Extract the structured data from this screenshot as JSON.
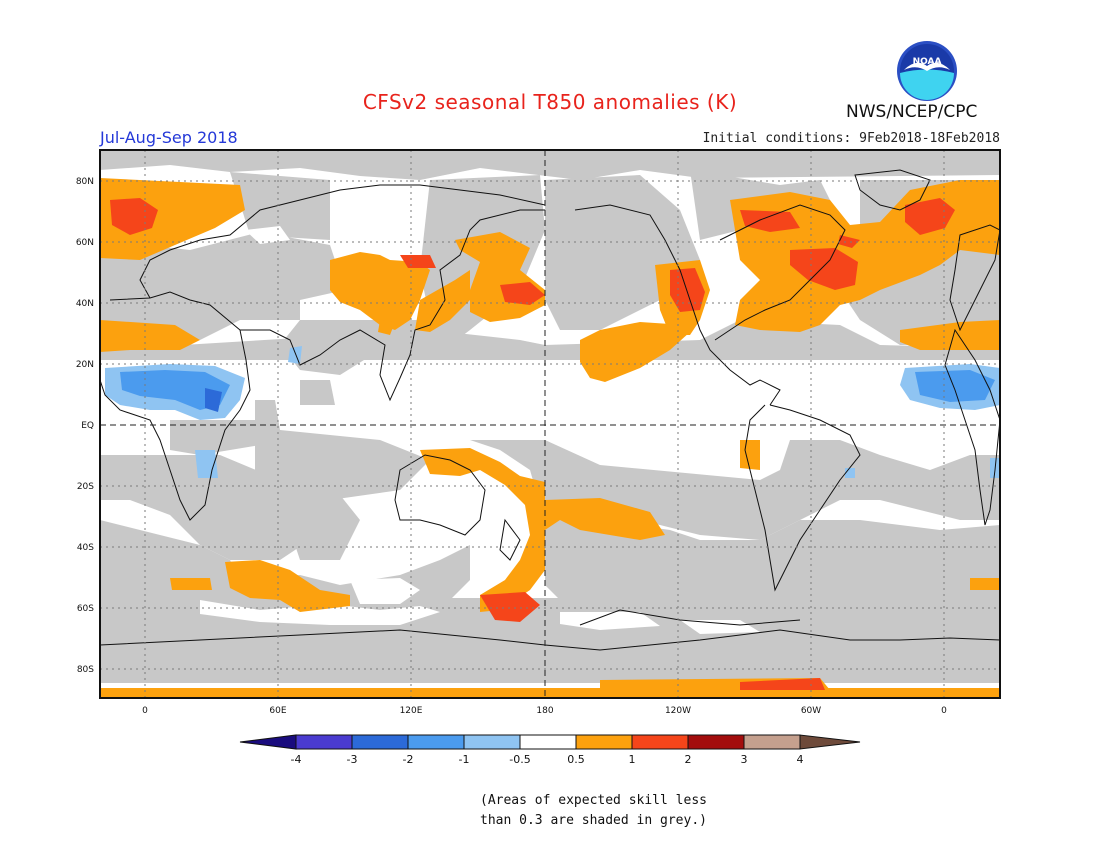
{
  "title": "CFSv2 seasonal T850 anomalies (K)",
  "period": "Jul-Aug-Sep 2018",
  "initial_conditions": "Initial conditions: 9Feb2018-18Feb2018",
  "agency": "NWS/NCEP/CPC",
  "logo_text": "NOAA",
  "footnote": "(Areas of expected skill less\nthan 0.3 are shaded in grey.)",
  "map": {
    "lat_ticks": [
      "80N",
      "60N",
      "40N",
      "20N",
      "EQ",
      "20S",
      "40S",
      "60S",
      "80S"
    ],
    "lon_ticks": [
      "0",
      "60E",
      "120E",
      "180",
      "120W",
      "60W",
      "0"
    ]
  },
  "colorbar": {
    "labels": [
      "-4",
      "-3",
      "-2",
      "-1",
      "-0.5",
      "0.5",
      "1",
      "2",
      "3",
      "4"
    ],
    "colors": [
      "#1a0c7e",
      "#4a3bd0",
      "#2c6ad8",
      "#4b9bee",
      "#8fc4f2",
      "#ffffff",
      "#fca10e",
      "#f5451a",
      "#a30d0d",
      "#c5a08e",
      "#6e4a3a"
    ]
  },
  "palette": {
    "grey_low_skill": "#c8c8c8",
    "warm_weak": "#fca10e",
    "warm_mod": "#f5451a",
    "cool_weak": "#8fc4f2",
    "cool_mod": "#4b9bee",
    "cool_strong": "#2c6ad8"
  }
}
